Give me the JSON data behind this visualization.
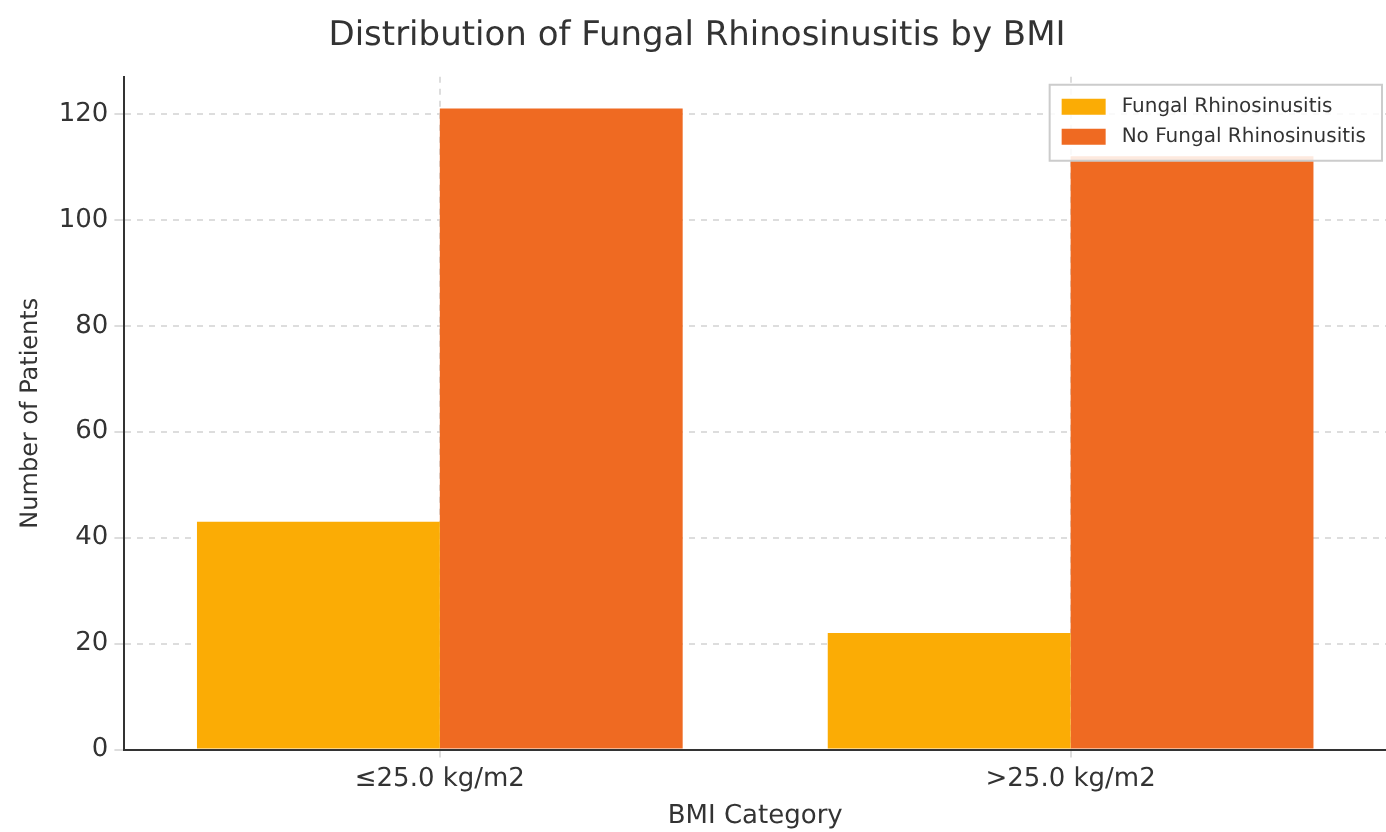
{
  "chart_data": {
    "type": "bar",
    "title": "Distribution of Fungal Rhinosinusitis by BMI",
    "xlabel": "BMI Category",
    "ylabel": "Number of Patients",
    "categories": [
      "≤25.0 kg/m2",
      ">25.0 kg/m2"
    ],
    "series": [
      {
        "name": "Fungal Rhinosinusitis",
        "color": "#fbac05",
        "values": [
          43,
          22
        ]
      },
      {
        "name": "No Fungal Rhinosinusitis",
        "color": "#ef6a22",
        "values": [
          121,
          112
        ]
      }
    ],
    "ylim": [
      0,
      127
    ],
    "yticks": [
      0,
      20,
      40,
      60,
      80,
      100,
      120
    ],
    "grid": true,
    "legend": "top right"
  }
}
